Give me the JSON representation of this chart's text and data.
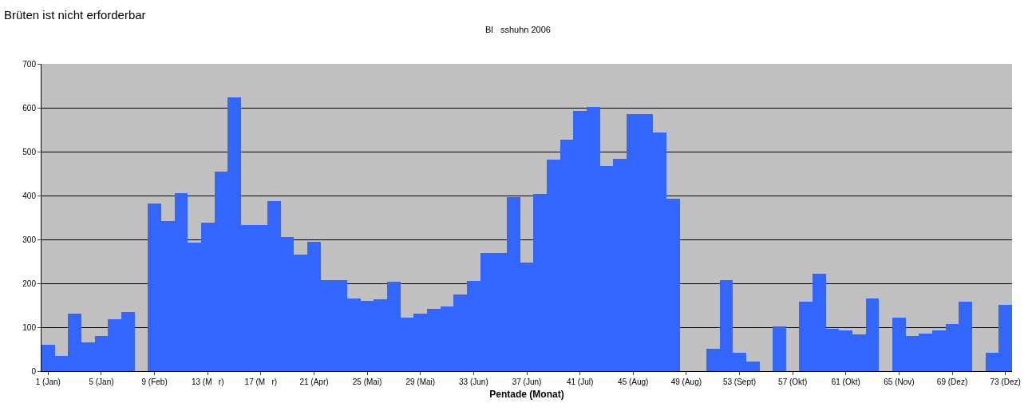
{
  "chart_data": {
    "type": "bar",
    "title": "Bl   sshuhn 2006",
    "xlabel": "Pentade (Monat)",
    "annotations": [
      "Brüten ist nicht erforderbar"
    ],
    "categories": [
      "1 (Jan)",
      null,
      null,
      null,
      "5 (Jan)",
      null,
      null,
      null,
      "9 (Feb)",
      null,
      null,
      null,
      "13 (M   r)",
      null,
      null,
      null,
      "17 (M   r)",
      null,
      null,
      null,
      "21 (Apr)",
      null,
      null,
      null,
      "25 (Mai)",
      null,
      null,
      null,
      "29 (Mai)",
      null,
      null,
      null,
      "33 (Jun)",
      null,
      null,
      null,
      "37 (Jun)",
      null,
      null,
      null,
      "41 (Jul)",
      null,
      null,
      null,
      "45 (Aug)",
      null,
      null,
      null,
      "49 (Aug)",
      null,
      null,
      null,
      "53 (Sept)",
      null,
      null,
      null,
      "57 (Okt)",
      null,
      null,
      null,
      "61 (Okt)",
      null,
      null,
      null,
      "65 (Nov)",
      null,
      null,
      null,
      "69 (Dez)",
      null,
      null,
      null,
      "73 (Dez)"
    ],
    "values": [
      60,
      34,
      131,
      66,
      80,
      119,
      134,
      0,
      381,
      341,
      405,
      293,
      339,
      454,
      624,
      332,
      332,
      387,
      306,
      266,
      294,
      207,
      207,
      165,
      160,
      163,
      203,
      121,
      131,
      141,
      148,
      174,
      205,
      269,
      269,
      397,
      247,
      403,
      481,
      528,
      592,
      601,
      467,
      483,
      586,
      586,
      544,
      393,
      0,
      0,
      51,
      207,
      41,
      21,
      0,
      102,
      0,
      159,
      221,
      96,
      92,
      83,
      165,
      0,
      122,
      80,
      85,
      93,
      107,
      159,
      0,
      41,
      151
    ],
    "color": "#3366ff",
    "ylim": [
      0,
      700
    ],
    "yticks": [
      0,
      100,
      200,
      300,
      400,
      500,
      600,
      700
    ],
    "grid": "y"
  }
}
